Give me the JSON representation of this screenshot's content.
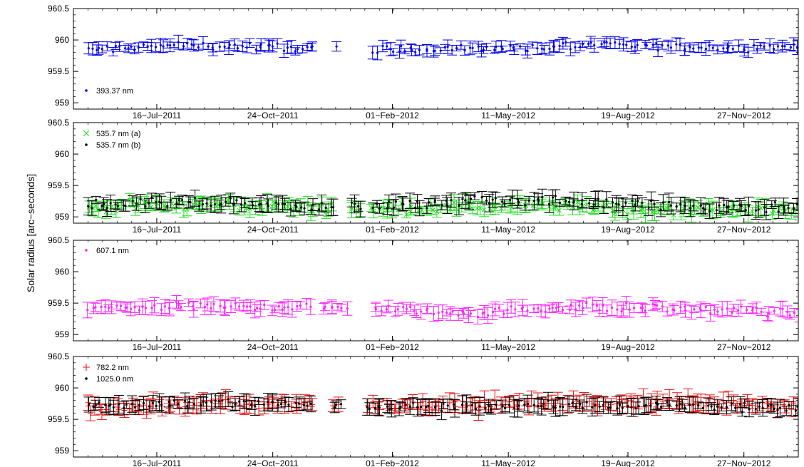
{
  "figure": {
    "ylabel": "Solar radius [arc−seconds]"
  },
  "chart_data": [
    {
      "type": "scatter",
      "ylim": [
        958.9,
        960.5
      ],
      "yticks": [
        "960.5",
        "960",
        "959.5",
        "959"
      ],
      "xlabels": [
        "16−Jul−2011",
        "24−Oct−2011",
        "01−Feb−2012",
        "11−May−2012",
        "19−Aug−2012",
        "27−Nov−2012"
      ],
      "series": [
        {
          "name": "393.37 nm",
          "color": "#0000ee",
          "marker": "dot",
          "trend": [
            [
              0,
              959.83
            ],
            [
              0.15,
              959.92
            ],
            [
              0.3,
              959.88
            ],
            [
              0.45,
              959.85
            ],
            [
              0.6,
              959.87
            ],
            [
              0.75,
              959.92
            ],
            [
              0.9,
              959.87
            ],
            [
              1,
              959.9
            ]
          ],
          "spread": 0.05,
          "err": 0.07
        }
      ],
      "gaps": [
        [
          0.33,
          0.36
        ],
        [
          0.37,
          0.41
        ]
      ]
    },
    {
      "type": "scatter",
      "ylim": [
        958.9,
        960.5
      ],
      "yticks": [
        "960.5",
        "960",
        "959.5",
        "959"
      ],
      "xlabels": [
        "16−Jul−2011",
        "24−Oct−2011",
        "01−Feb−2012",
        "11−May−2012",
        "19−Aug−2012",
        "27−Nov−2012"
      ],
      "series": [
        {
          "name": "535.7 nm (a)",
          "color": "#22dd22",
          "marker": "x",
          "trend": [
            [
              0,
              959.15
            ],
            [
              0.2,
              959.2
            ],
            [
              0.4,
              959.12
            ],
            [
              0.6,
              959.18
            ],
            [
              0.8,
              959.12
            ],
            [
              1,
              959.1
            ]
          ],
          "spread": 0.07,
          "err": 0.09
        },
        {
          "name": "535.7 nm (b)",
          "color": "#000000",
          "marker": "dot",
          "trend": [
            [
              0,
              959.2
            ],
            [
              0.2,
              959.22
            ],
            [
              0.4,
              959.15
            ],
            [
              0.6,
              959.28
            ],
            [
              0.8,
              959.18
            ],
            [
              1,
              959.12
            ]
          ],
          "spread": 0.07,
          "err": 0.09
        }
      ],
      "gaps": [
        [
          0.36,
          0.38
        ],
        [
          0.4,
          0.41
        ]
      ]
    },
    {
      "type": "scatter",
      "ylim": [
        958.9,
        960.5
      ],
      "yticks": [
        "960.5",
        "960",
        "959.5",
        "959"
      ],
      "xlabels": [
        "16−Jul−2011",
        "24−Oct−2011",
        "01−Feb−2012",
        "11−May−2012",
        "19−Aug−2012",
        "27−Nov−2012"
      ],
      "series": [
        {
          "name": "607.1 nm",
          "color": "#ff22ff",
          "marker": "dot",
          "trend": [
            [
              0,
              959.42
            ],
            [
              0.2,
              959.45
            ],
            [
              0.4,
              959.42
            ],
            [
              0.55,
              959.35
            ],
            [
              0.7,
              959.45
            ],
            [
              0.85,
              959.4
            ],
            [
              1,
              959.35
            ]
          ],
          "spread": 0.06,
          "err": 0.08
        }
      ],
      "gaps": [
        [
          0.33,
          0.345
        ],
        [
          0.38,
          0.41
        ]
      ]
    },
    {
      "type": "scatter",
      "ylim": [
        958.9,
        960.5
      ],
      "yticks": [
        "960.5",
        "960",
        "959.5",
        "959"
      ],
      "xlabels": [
        "16−Jul−2011",
        "24−Oct−2011",
        "01−Feb−2012",
        "11−May−2012",
        "19−Aug−2012",
        "27−Nov−2012"
      ],
      "series": [
        {
          "name": "782.2 nm",
          "color": "#ee1111",
          "marker": "plus",
          "trend": [
            [
              0,
              959.65
            ],
            [
              0.2,
              959.75
            ],
            [
              0.4,
              959.72
            ],
            [
              0.6,
              959.75
            ],
            [
              0.8,
              959.78
            ],
            [
              1,
              959.72
            ]
          ],
          "spread": 0.07,
          "err": 0.1
        },
        {
          "name": "1025.0 nm",
          "color": "#000000",
          "marker": "dot",
          "trend": [
            [
              0,
              959.72
            ],
            [
              0.2,
              959.78
            ],
            [
              0.4,
              959.7
            ],
            [
              0.6,
              959.72
            ],
            [
              0.8,
              959.72
            ],
            [
              1,
              959.68
            ]
          ],
          "spread": 0.06,
          "err": 0.09
        }
      ],
      "gaps": [
        [
          0.33,
          0.355
        ],
        [
          0.37,
          0.405
        ]
      ]
    }
  ]
}
